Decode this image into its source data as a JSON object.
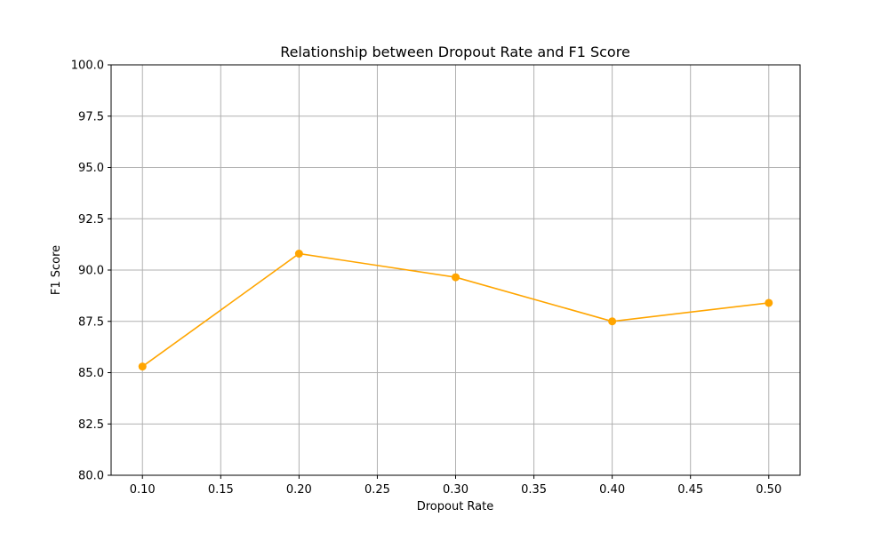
{
  "chart_data": {
    "type": "line",
    "title": "Relationship between Dropout Rate and F1 Score",
    "xlabel": "Dropout Rate",
    "ylabel": "F1 Score",
    "x": [
      0.1,
      0.2,
      0.3,
      0.4,
      0.5
    ],
    "series": [
      {
        "values": [
          85.3,
          90.8,
          89.65,
          87.5,
          88.4
        ],
        "color": "#FFA500",
        "marker": "circle"
      }
    ],
    "xlim": [
      0.08,
      0.52
    ],
    "ylim": [
      80.0,
      100.0
    ],
    "x_ticks": [
      "0.10",
      "0.15",
      "0.20",
      "0.25",
      "0.30",
      "0.35",
      "0.40",
      "0.45",
      "0.50"
    ],
    "y_ticks": [
      "80.0",
      "82.5",
      "85.0",
      "87.5",
      "90.0",
      "92.5",
      "95.0",
      "97.5",
      "100.0"
    ],
    "grid": true,
    "legend": false
  }
}
